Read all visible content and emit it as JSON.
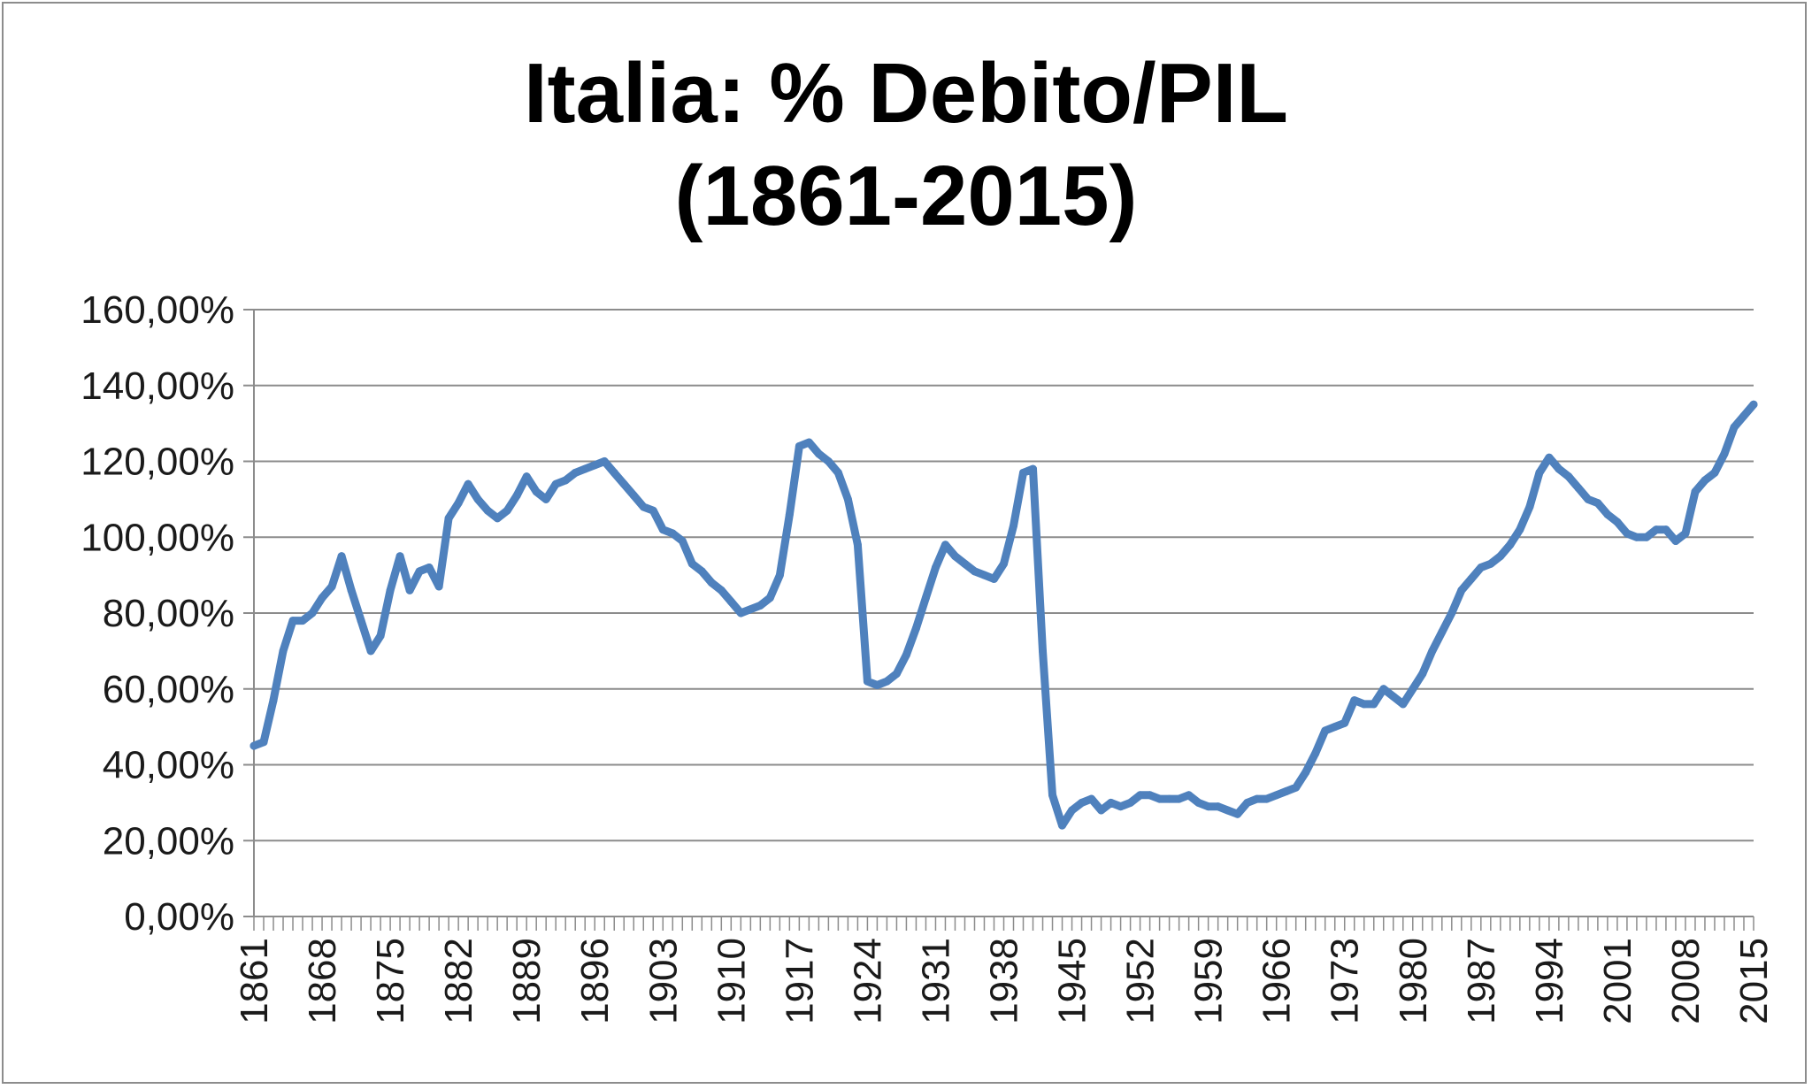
{
  "chart_data": {
    "type": "line",
    "title_lines": [
      "Italia: % Debito/PIL",
      "(1861-2015)"
    ],
    "xlabel": "",
    "ylabel": "",
    "ylim": [
      0,
      160
    ],
    "y_ticks": [
      0,
      20,
      40,
      60,
      80,
      100,
      120,
      140,
      160
    ],
    "y_tick_labels": [
      "0,00%",
      "20,00%",
      "40,00%",
      "60,00%",
      "80,00%",
      "100,00%",
      "120,00%",
      "140,00%",
      "160,00%"
    ],
    "x_range": [
      1861,
      2015
    ],
    "x_tick_labels": [
      "1861",
      "1868",
      "1875",
      "1882",
      "1889",
      "1896",
      "1903",
      "1910",
      "1917",
      "1924",
      "1931",
      "1938",
      "1945",
      "1952",
      "1959",
      "1966",
      "1973",
      "1980",
      "1987",
      "1994",
      "2001",
      "2008",
      "2015"
    ],
    "grid": "horizontal",
    "legend": "none",
    "line_color": "#4f81bd",
    "series": [
      {
        "x": [
          1861,
          1862,
          1863,
          1864,
          1865,
          1866,
          1867,
          1868,
          1869,
          1870,
          1871,
          1872,
          1873,
          1874,
          1875,
          1876,
          1877,
          1878,
          1879,
          1880,
          1881,
          1882,
          1883,
          1884,
          1885,
          1886,
          1887,
          1888,
          1889,
          1890,
          1891,
          1892,
          1893,
          1894,
          1895,
          1896,
          1897,
          1898,
          1899,
          1900,
          1901,
          1902,
          1903,
          1904,
          1905,
          1906,
          1907,
          1908,
          1909,
          1910,
          1911,
          1912,
          1913,
          1914,
          1915,
          1916,
          1917,
          1918,
          1919,
          1920,
          1921,
          1922,
          1923,
          1924,
          1925,
          1926,
          1927,
          1928,
          1929,
          1930,
          1931,
          1932,
          1933,
          1934,
          1935,
          1936,
          1937,
          1938,
          1939,
          1940,
          1941,
          1942,
          1943,
          1944,
          1945,
          1946,
          1947,
          1948,
          1949,
          1950,
          1951,
          1952,
          1953,
          1954,
          1955,
          1956,
          1957,
          1958,
          1959,
          1960,
          1961,
          1962,
          1963,
          1964,
          1965,
          1966,
          1967,
          1968,
          1969,
          1970,
          1971,
          1972,
          1973,
          1974,
          1975,
          1976,
          1977,
          1978,
          1979,
          1980,
          1981,
          1982,
          1983,
          1984,
          1985,
          1986,
          1987,
          1988,
          1989,
          1990,
          1991,
          1992,
          1993,
          1994,
          1995,
          1996,
          1997,
          1998,
          1999,
          2000,
          2001,
          2002,
          2003,
          2004,
          2005,
          2006,
          2007,
          2008,
          2009,
          2010,
          2011,
          2012,
          2013,
          2014,
          2015
        ],
        "values": [
          45,
          46,
          57,
          70,
          78,
          78,
          80,
          84,
          87,
          95,
          86,
          78,
          70,
          74,
          86,
          95,
          86,
          91,
          92,
          87,
          105,
          109,
          114,
          110,
          107,
          105,
          107,
          111,
          116,
          112,
          110,
          114,
          115,
          117,
          118,
          119,
          120,
          117,
          114,
          111,
          108,
          107,
          102,
          101,
          99,
          93,
          91,
          88,
          86,
          83,
          80,
          81,
          82,
          84,
          90,
          106,
          124,
          125,
          122,
          120,
          117,
          110,
          98,
          62,
          61,
          62,
          64,
          69,
          76,
          84,
          92,
          98,
          95,
          93,
          91,
          90,
          89,
          93,
          103,
          117,
          118,
          70,
          32,
          24,
          28,
          30,
          31,
          28,
          30,
          29,
          30,
          32,
          32,
          31,
          31,
          31,
          32,
          30,
          29,
          29,
          28,
          27,
          30,
          31,
          31,
          32,
          33,
          34,
          38,
          43,
          49,
          50,
          51,
          57,
          56,
          56,
          60,
          58,
          56,
          60,
          64,
          70,
          75,
          80,
          86,
          89,
          92,
          93,
          95,
          98,
          102,
          108,
          117,
          121,
          118,
          116,
          113,
          110,
          109,
          106,
          104,
          101,
          100,
          100,
          102,
          102,
          99,
          101,
          112,
          115,
          117,
          122,
          129,
          132,
          135
        ]
      }
    ]
  }
}
